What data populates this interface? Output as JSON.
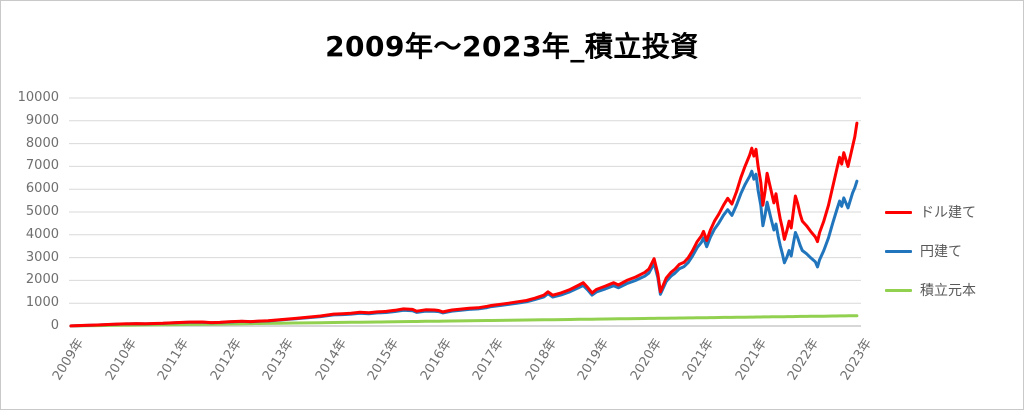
{
  "title": "2009年～2023年_積立投資",
  "colors": {
    "usd": "#ff0000",
    "jpy": "#2175bc",
    "principal": "#92d050",
    "grid": "#d9d9d9",
    "axis_line": "#bfbfbf",
    "tick_label": "#6f6f6f",
    "legend_text": "#595959",
    "title_text": "#000000"
  },
  "legend": {
    "position": "right",
    "items": [
      {
        "id": "usd",
        "label": "ドル建て",
        "color": "#ff0000"
      },
      {
        "id": "jpy",
        "label": "円建て",
        "color": "#2175bc"
      },
      {
        "id": "principal",
        "label": "積立元本",
        "color": "#92d050"
      }
    ]
  },
  "y_axis": {
    "min": 0,
    "max": 10000,
    "step": 1000,
    "tick_labels": [
      "0",
      "1000",
      "2000",
      "3000",
      "4000",
      "5000",
      "6000",
      "7000",
      "8000",
      "9000",
      "10000"
    ]
  },
  "x_axis": {
    "tick_labels": [
      "2009年",
      "2010年",
      "2011年",
      "2012年",
      "2013年",
      "2014年",
      "2015年",
      "2016年",
      "2017年",
      "2018年",
      "2019年",
      "2020年",
      "2021年",
      "2021年",
      "2022年",
      "2023年"
    ]
  },
  "chart_data": {
    "type": "line",
    "title": "2009年～2023年_積立投資",
    "xlabel": "",
    "ylabel": "",
    "ylim": [
      0,
      10000
    ],
    "x_unit": "decimal_year",
    "x_range": [
      2009.0,
      2023.96
    ],
    "grid": "horizontal",
    "legend_position": "right",
    "series_names": [
      "ドル建て",
      "円建て",
      "積立元本"
    ],
    "series_colors": [
      "#ff0000",
      "#2175bc",
      "#92d050"
    ],
    "point_format": [
      "x",
      "ドル建て",
      "円建て",
      "積立元本"
    ],
    "points": [
      [
        2009.0,
        5,
        5,
        2
      ],
      [
        2009.25,
        25,
        24,
        10
      ],
      [
        2009.5,
        45,
        43,
        17
      ],
      [
        2009.75,
        70,
        67,
        25
      ],
      [
        2010.0,
        90,
        87,
        32
      ],
      [
        2010.25,
        105,
        101,
        40
      ],
      [
        2010.42,
        95,
        92,
        45
      ],
      [
        2010.58,
        110,
        106,
        50
      ],
      [
        2010.75,
        120,
        115,
        55
      ],
      [
        2011.0,
        150,
        144,
        62
      ],
      [
        2011.25,
        170,
        163,
        70
      ],
      [
        2011.5,
        175,
        167,
        77
      ],
      [
        2011.67,
        150,
        143,
        82
      ],
      [
        2011.83,
        160,
        152,
        87
      ],
      [
        2012.0,
        185,
        176,
        92
      ],
      [
        2012.25,
        210,
        200,
        100
      ],
      [
        2012.42,
        195,
        186,
        105
      ],
      [
        2012.58,
        215,
        205,
        110
      ],
      [
        2012.75,
        230,
        220,
        115
      ],
      [
        2013.0,
        280,
        266,
        122
      ],
      [
        2013.25,
        330,
        312,
        130
      ],
      [
        2013.5,
        380,
        358,
        137
      ],
      [
        2013.75,
        440,
        414,
        145
      ],
      [
        2014.0,
        520,
        485,
        152
      ],
      [
        2014.17,
        540,
        502,
        157
      ],
      [
        2014.33,
        560,
        520,
        162
      ],
      [
        2014.5,
        600,
        557,
        167
      ],
      [
        2014.67,
        580,
        538,
        172
      ],
      [
        2014.83,
        620,
        575,
        177
      ],
      [
        2015.0,
        640,
        590,
        182
      ],
      [
        2015.17,
        690,
        634,
        187
      ],
      [
        2015.33,
        750,
        690,
        192
      ],
      [
        2015.5,
        730,
        670,
        197
      ],
      [
        2015.58,
        650,
        597,
        199
      ],
      [
        2015.75,
        710,
        652,
        205
      ],
      [
        2015.92,
        700,
        644,
        210
      ],
      [
        2016.0,
        680,
        630,
        212
      ],
      [
        2016.08,
        620,
        575,
        214
      ],
      [
        2016.25,
        700,
        652,
        220
      ],
      [
        2016.42,
        740,
        692,
        225
      ],
      [
        2016.58,
        780,
        730,
        230
      ],
      [
        2016.75,
        800,
        750,
        235
      ],
      [
        2016.92,
        860,
        808,
        240
      ],
      [
        2017.0,
        900,
        850,
        242
      ],
      [
        2017.17,
        950,
        900,
        247
      ],
      [
        2017.33,
        1000,
        948,
        252
      ],
      [
        2017.5,
        1060,
        1005,
        257
      ],
      [
        2017.67,
        1120,
        1062,
        262
      ],
      [
        2017.83,
        1220,
        1156,
        267
      ],
      [
        2018.0,
        1350,
        1275,
        272
      ],
      [
        2018.08,
        1500,
        1415,
        274
      ],
      [
        2018.17,
        1350,
        1270,
        277
      ],
      [
        2018.33,
        1450,
        1363,
        282
      ],
      [
        2018.5,
        1600,
        1504,
        287
      ],
      [
        2018.67,
        1800,
        1690,
        292
      ],
      [
        2018.75,
        1900,
        1780,
        295
      ],
      [
        2018.83,
        1700,
        1590,
        297
      ],
      [
        2018.92,
        1450,
        1355,
        300
      ],
      [
        2019.0,
        1600,
        1490,
        302
      ],
      [
        2019.17,
        1750,
        1628,
        307
      ],
      [
        2019.33,
        1900,
        1767,
        312
      ],
      [
        2019.42,
        1800,
        1674,
        315
      ],
      [
        2019.58,
        2000,
        1860,
        320
      ],
      [
        2019.75,
        2150,
        2000,
        324
      ],
      [
        2019.92,
        2350,
        2185,
        330
      ],
      [
        2020.0,
        2500,
        2325,
        332
      ],
      [
        2020.1,
        2950,
        2740,
        335
      ],
      [
        2020.17,
        2300,
        2130,
        337
      ],
      [
        2020.22,
        1500,
        1390,
        339
      ],
      [
        2020.33,
        2100,
        1950,
        342
      ],
      [
        2020.42,
        2350,
        2185,
        345
      ],
      [
        2020.5,
        2500,
        2325,
        347
      ],
      [
        2020.58,
        2700,
        2510,
        349
      ],
      [
        2020.67,
        2800,
        2604,
        352
      ],
      [
        2020.75,
        3000,
        2790,
        354
      ],
      [
        2020.83,
        3300,
        3070,
        357
      ],
      [
        2020.92,
        3700,
        3440,
        360
      ],
      [
        2021.0,
        3950,
        3670,
        362
      ],
      [
        2021.04,
        4150,
        3860,
        363
      ],
      [
        2021.1,
        3750,
        3480,
        365
      ],
      [
        2021.17,
        4200,
        3890,
        367
      ],
      [
        2021.25,
        4600,
        4250,
        370
      ],
      [
        2021.33,
        4900,
        4510,
        372
      ],
      [
        2021.42,
        5300,
        4860,
        375
      ],
      [
        2021.5,
        5600,
        5100,
        377
      ],
      [
        2021.58,
        5350,
        4850,
        379
      ],
      [
        2021.67,
        5900,
        5310,
        382
      ],
      [
        2021.75,
        6500,
        5800,
        384
      ],
      [
        2021.83,
        7000,
        6200,
        387
      ],
      [
        2021.92,
        7500,
        6570,
        390
      ],
      [
        2021.96,
        7800,
        6790,
        391
      ],
      [
        2022.0,
        7450,
        6440,
        392
      ],
      [
        2022.04,
        7750,
        6660,
        393
      ],
      [
        2022.08,
        7000,
        5950,
        394
      ],
      [
        2022.13,
        6300,
        5290,
        396
      ],
      [
        2022.17,
        5300,
        4400,
        397
      ],
      [
        2022.21,
        5900,
        4840,
        399
      ],
      [
        2022.25,
        6700,
        5430,
        400
      ],
      [
        2022.29,
        6300,
        5040,
        401
      ],
      [
        2022.33,
        5900,
        4660,
        402
      ],
      [
        2022.38,
        5400,
        4210,
        403
      ],
      [
        2022.42,
        5800,
        4470,
        405
      ],
      [
        2022.46,
        5200,
        3950,
        406
      ],
      [
        2022.5,
        4700,
        3530,
        407
      ],
      [
        2022.54,
        4300,
        3180,
        408
      ],
      [
        2022.58,
        3800,
        2770,
        409
      ],
      [
        2022.63,
        4200,
        3030,
        411
      ],
      [
        2022.67,
        4600,
        3310,
        412
      ],
      [
        2022.71,
        4300,
        3070,
        413
      ],
      [
        2022.75,
        5000,
        3600,
        414
      ],
      [
        2022.79,
        5700,
        4100,
        416
      ],
      [
        2022.83,
        5400,
        3890,
        417
      ],
      [
        2022.88,
        4900,
        3530,
        419
      ],
      [
        2022.92,
        4600,
        3310,
        420
      ],
      [
        2023.0,
        4400,
        3170,
        422
      ],
      [
        2023.08,
        4150,
        2990,
        424
      ],
      [
        2023.17,
        3900,
        2810,
        427
      ],
      [
        2023.21,
        3700,
        2590,
        428
      ],
      [
        2023.25,
        4100,
        2910,
        430
      ],
      [
        2023.33,
        4600,
        3310,
        432
      ],
      [
        2023.42,
        5300,
        3870,
        435
      ],
      [
        2023.5,
        6100,
        4510,
        437
      ],
      [
        2023.58,
        6900,
        5110,
        440
      ],
      [
        2023.63,
        7400,
        5480,
        441
      ],
      [
        2023.67,
        7100,
        5250,
        442
      ],
      [
        2023.71,
        7600,
        5620,
        443
      ],
      [
        2023.75,
        7300,
        5400,
        445
      ],
      [
        2023.79,
        7000,
        5180,
        446
      ],
      [
        2023.83,
        7400,
        5480,
        447
      ],
      [
        2023.88,
        7900,
        5850,
        448
      ],
      [
        2023.92,
        8300,
        6060,
        450
      ],
      [
        2023.96,
        8900,
        6350,
        451
      ]
    ]
  }
}
